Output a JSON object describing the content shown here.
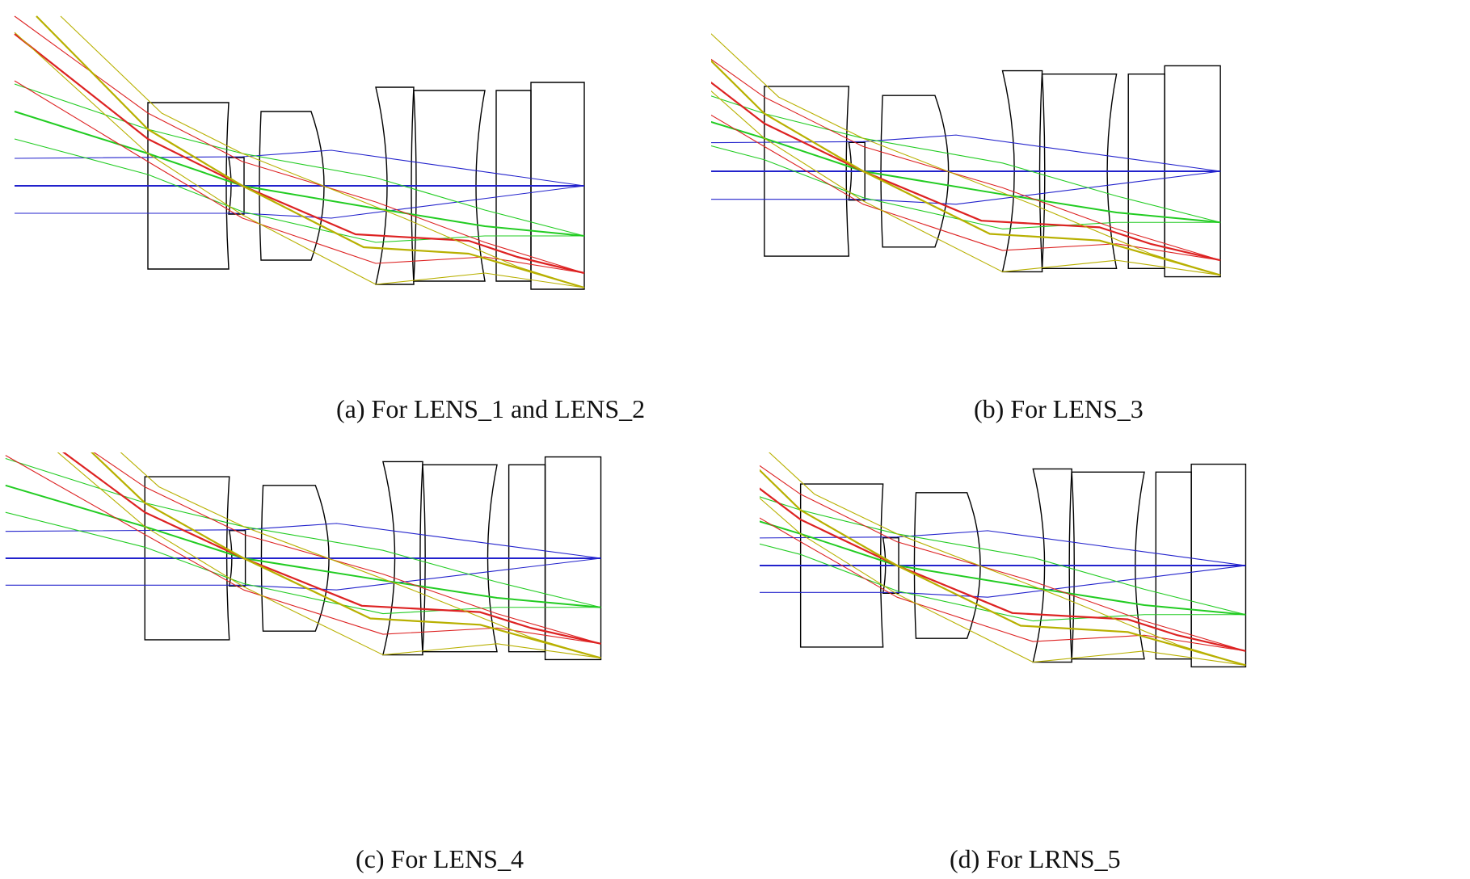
{
  "figure": {
    "panels": [
      {
        "id": "a",
        "caption": "(a) For LENS_1 and LENS_2"
      },
      {
        "id": "b",
        "caption": "(b) For LENS_3"
      },
      {
        "id": "c",
        "caption": "(c) For LENS_4"
      },
      {
        "id": "d",
        "caption": "(d) For LRNS_5"
      }
    ],
    "ray_colors": {
      "on_axis_field": "#2222cc",
      "mid_field": "#22cc22",
      "full_field": "#dd2222",
      "edge_field": "#b8b000"
    },
    "lens_outline_color": "#000000"
  }
}
